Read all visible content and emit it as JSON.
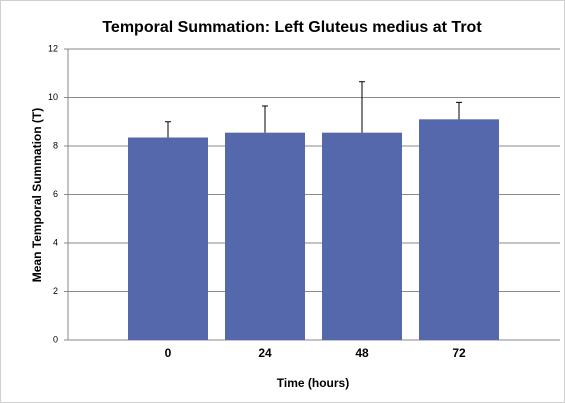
{
  "chart_data": {
    "type": "bar",
    "title": "Temporal Summation: Left Gluteus medius at Trot",
    "x_label": "Time (hours)",
    "y_label": "Mean Temporal Summation (T)",
    "categories": [
      "0",
      "24",
      "48",
      "72"
    ],
    "values": [
      8.35,
      8.55,
      8.55,
      9.1
    ],
    "errors": [
      0.65,
      1.1,
      2.1,
      0.7
    ],
    "color": "#5568ac",
    "ylim": [
      0,
      12
    ],
    "yticks": [
      0,
      2,
      4,
      6,
      8,
      10,
      12
    ],
    "grid": true
  }
}
